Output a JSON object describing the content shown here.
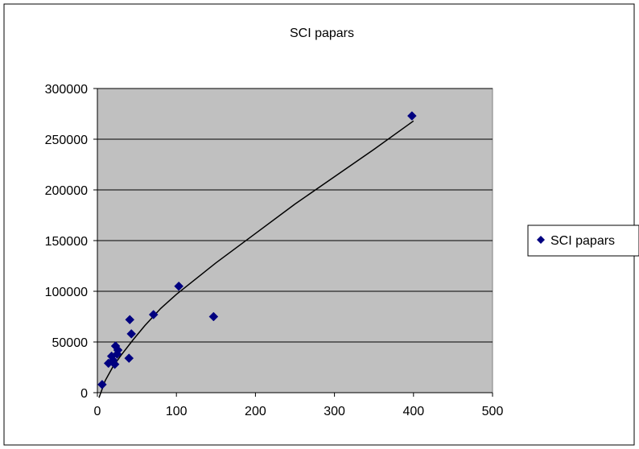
{
  "chart_data": {
    "type": "scatter",
    "title": "SCI papars",
    "xlabel": "",
    "ylabel": "",
    "xlim": [
      0,
      500
    ],
    "ylim": [
      0,
      300000
    ],
    "x_ticks": [
      "0",
      "100",
      "200",
      "300",
      "400",
      "500"
    ],
    "y_ticks": [
      "0",
      "50000",
      "100000",
      "150000",
      "200000",
      "250000",
      "300000"
    ],
    "grid": "horizontal",
    "legend_position": "right",
    "trendline": true,
    "series": [
      {
        "name": "SCI papars",
        "color": "#000080",
        "marker": "diamond",
        "points": [
          {
            "x": 6,
            "y": 8000
          },
          {
            "x": 14,
            "y": 29000
          },
          {
            "x": 18,
            "y": 36000
          },
          {
            "x": 20,
            "y": 32000
          },
          {
            "x": 22,
            "y": 28000
          },
          {
            "x": 23,
            "y": 46000
          },
          {
            "x": 25,
            "y": 38000
          },
          {
            "x": 26,
            "y": 42000
          },
          {
            "x": 40,
            "y": 34000
          },
          {
            "x": 41,
            "y": 72000
          },
          {
            "x": 43,
            "y": 58000
          },
          {
            "x": 71,
            "y": 77000
          },
          {
            "x": 103,
            "y": 105000
          },
          {
            "x": 147,
            "y": 75000
          },
          {
            "x": 398,
            "y": 273000
          }
        ]
      }
    ],
    "trend_points": [
      {
        "x": 2,
        "y": -5000
      },
      {
        "x": 10,
        "y": 12000
      },
      {
        "x": 20,
        "y": 26000
      },
      {
        "x": 30,
        "y": 37000
      },
      {
        "x": 45,
        "y": 52000
      },
      {
        "x": 60,
        "y": 66000
      },
      {
        "x": 80,
        "y": 83000
      },
      {
        "x": 100,
        "y": 97000
      },
      {
        "x": 150,
        "y": 128000
      },
      {
        "x": 200,
        "y": 157000
      },
      {
        "x": 250,
        "y": 186000
      },
      {
        "x": 300,
        "y": 213000
      },
      {
        "x": 350,
        "y": 240000
      },
      {
        "x": 400,
        "y": 268000
      }
    ]
  }
}
